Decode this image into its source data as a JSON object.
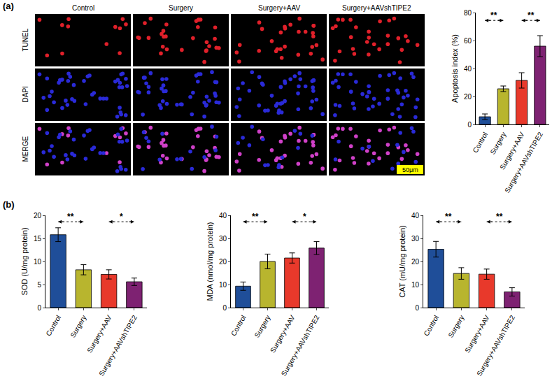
{
  "panel_labels": [
    "(a)",
    "(b)"
  ],
  "micrographs": {
    "columns": [
      "Control",
      "Surgery",
      "Surgery+AAV",
      "Surgery+AAVshTIPE2"
    ],
    "rows": [
      "TUNEL",
      "DAPI",
      "MERGE"
    ],
    "scale_bar": "50μm"
  },
  "chart_data": [
    {
      "type": "bar",
      "y_label": "Apoptosis index (%)",
      "categories": [
        "Control",
        "Surgery",
        "Surgery+AAV",
        "Surgery+AAVshTIPE2"
      ],
      "values": [
        5.5,
        25.5,
        31.5,
        56
      ],
      "errors": [
        2,
        2,
        5.5,
        7.5
      ],
      "colors": [
        "#1f4e99",
        "#b8b52e",
        "#e8392b",
        "#7e2272"
      ],
      "ylim": [
        0,
        80
      ],
      "yticks": [
        0,
        20,
        40,
        60,
        80
      ],
      "grid": false,
      "annotations": [
        {
          "from": "Control",
          "to": "Surgery",
          "text": "**"
        },
        {
          "from": "Surgery+AAV",
          "to": "Surgery+AAVshTIPE2",
          "text": "**"
        }
      ]
    },
    {
      "type": "bar",
      "y_label": "SOD (U/mg protein)",
      "categories": [
        "Control",
        "Surgery",
        "Surgery+AAV",
        "Surgery+AAVshTIPE2"
      ],
      "values": [
        15.8,
        8.2,
        7.2,
        5.6
      ],
      "errors": [
        1.5,
        1.1,
        1.0,
        0.8
      ],
      "colors": [
        "#1f4e99",
        "#b8b52e",
        "#e8392b",
        "#7e2272"
      ],
      "ylim": [
        0,
        20
      ],
      "yticks": [
        0,
        5,
        10,
        15,
        20
      ],
      "grid": false,
      "annotations": [
        {
          "from": "Control",
          "to": "Surgery",
          "text": "**"
        },
        {
          "from": "Surgery+AAV",
          "to": "Surgery+AAVshTIPE2",
          "text": "*"
        }
      ]
    },
    {
      "type": "bar",
      "y_label": "MDA (nmol/mg protein)",
      "categories": [
        "Control",
        "Surgery",
        "Surgery+AAV",
        "Surgery+AAVshTIPE2"
      ],
      "values": [
        9.3,
        20,
        21.5,
        25.8
      ],
      "errors": [
        1.8,
        3.2,
        2.2,
        2.8
      ],
      "colors": [
        "#1f4e99",
        "#b8b52e",
        "#e8392b",
        "#7e2272"
      ],
      "ylim": [
        0,
        40
      ],
      "yticks": [
        0,
        10,
        20,
        30,
        40
      ],
      "grid": false,
      "annotations": [
        {
          "from": "Control",
          "to": "Surgery",
          "text": "**"
        },
        {
          "from": "Surgery+AAV",
          "to": "Surgery+AAVshTIPE2",
          "text": "*"
        }
      ]
    },
    {
      "type": "bar",
      "y_label": "CAT (mU/mg protein)",
      "categories": [
        "Control",
        "Surgery",
        "Surgery+AAV",
        "Surgery+AAVshTIPE2"
      ],
      "values": [
        25.3,
        14.8,
        14.5,
        6.8
      ],
      "errors": [
        3.4,
        2.5,
        2.2,
        1.8
      ],
      "colors": [
        "#1f4e99",
        "#b8b52e",
        "#e8392b",
        "#7e2272"
      ],
      "ylim": [
        0,
        40
      ],
      "yticks": [
        0,
        10,
        20,
        30,
        40
      ],
      "grid": false,
      "annotations": [
        {
          "from": "Control",
          "to": "Surgery",
          "text": "**"
        },
        {
          "from": "Surgery+AAV",
          "to": "Surgery+AAVshTIPE2",
          "text": "**"
        }
      ]
    }
  ]
}
